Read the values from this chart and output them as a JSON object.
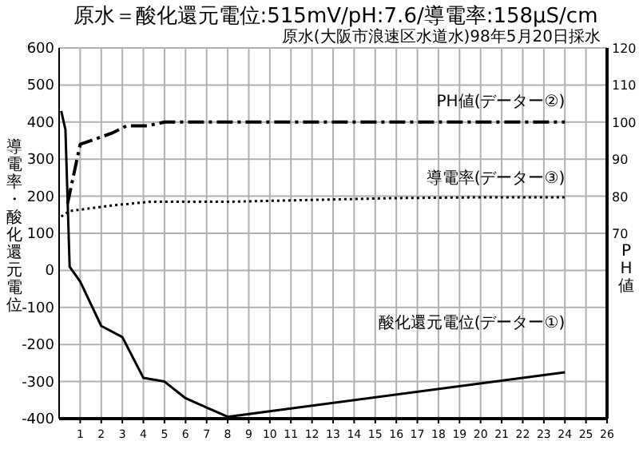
{
  "chart_data": {
    "type": "line",
    "title": "原水＝酸化還元電位:515mV/pH:7.6/導電率:158μS/cm",
    "subtitle": "原水(大阪市浪速区水道水)98年5月20日採水",
    "ylabel": "導電率・酸化還元電位",
    "y2label": "PH値",
    "xlim": [
      0,
      26
    ],
    "xticks": [
      1,
      2,
      3,
      4,
      5,
      6,
      7,
      8,
      9,
      10,
      11,
      12,
      13,
      14,
      15,
      16,
      17,
      18,
      19,
      20,
      21,
      22,
      23,
      24,
      25,
      26
    ],
    "ylim": [
      -400,
      600
    ],
    "yticks": [
      -400,
      -300,
      -200,
      -100,
      0,
      100,
      200,
      300,
      400,
      500,
      600
    ],
    "y2lim": [
      20,
      120
    ],
    "y2ticks": [
      70,
      80,
      90,
      100,
      110,
      120
    ],
    "grid": true,
    "marker": "none",
    "series": [
      {
        "name": "PH値(データー②)",
        "color": "#000000",
        "axis": "y2",
        "line_style": "dashed",
        "x": [
          0.4,
          1,
          2.5,
          3.2,
          4.2,
          5,
          8,
          12,
          16,
          20,
          24
        ],
        "values": [
          78,
          94,
          97,
          99,
          99,
          100,
          100,
          100,
          100,
          100,
          100
        ]
      },
      {
        "name": "導電率(データー③)",
        "color": "#000000",
        "axis": "y",
        "line_style": "dotted",
        "x": [
          0.1,
          0.5,
          2.5,
          4.3,
          8,
          12,
          16,
          20,
          24
        ],
        "values": [
          145,
          160,
          175,
          185,
          185,
          190,
          195,
          197,
          197
        ]
      },
      {
        "name": "酸化還元電位(データー①)",
        "color": "#000000",
        "axis": "y",
        "line_style": "solid",
        "x": [
          0.1,
          0.3,
          0.5,
          1,
          2,
          3,
          4,
          5,
          6,
          7,
          8,
          24
        ],
        "values": [
          430,
          380,
          10,
          -30,
          -150,
          -180,
          -290,
          -300,
          -345,
          -370,
          -395,
          -275
        ]
      }
    ]
  }
}
